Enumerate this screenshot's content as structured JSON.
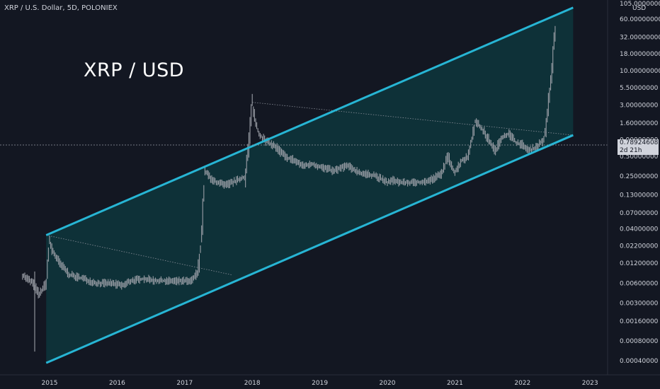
{
  "header": {
    "symbol_line": "XRP / U.S. Dollar, 5D, POLONIEX"
  },
  "overlay_title": "XRP / USD",
  "price_tag": {
    "price": "0.78924608",
    "countdown": "2d 21h"
  },
  "colors": {
    "background": "#131722",
    "channel": "#27b5d4",
    "channel_fill": "#0d3b40",
    "candles": "#9a9ea6",
    "text": "#d1d4dc"
  },
  "chart_data": {
    "type": "line",
    "title": "XRP / USD",
    "yscale": "log",
    "ylim": [
      0.0003,
      105
    ],
    "y_axis_unit": "USD",
    "y_ticks": [
      "105.00000000",
      "60.00000000",
      "32.00000000",
      "18.00000000",
      "10.00000000",
      "5.50000000",
      "3.00000000",
      "1.60000000",
      "0.90000000",
      "0.50000000",
      "0.25000000",
      "0.13000000",
      "0.07000000",
      "0.04000000",
      "0.02200000",
      "0.01200000",
      "0.00600000",
      "0.00300000",
      "0.00160000",
      "0.00080000",
      "0.00040000"
    ],
    "x_ticks": [
      "2015",
      "2016",
      "2017",
      "2018",
      "2019",
      "2020",
      "2021",
      "2022",
      "2023"
    ],
    "last_price": 0.78924608,
    "series": [
      {
        "x": [
          2014.6,
          2014.75,
          2014.85,
          2014.95,
          2015.0,
          2015.05,
          2015.15,
          2015.3,
          2015.5,
          2015.7,
          2015.9,
          2016.1,
          2016.2,
          2016.4,
          2016.6,
          2016.8,
          2017.0,
          2017.1,
          2017.2,
          2017.25,
          2017.3,
          2017.4,
          2017.5,
          2017.6,
          2017.7,
          2017.8,
          2017.9,
          2017.95,
          2018.0,
          2018.05,
          2018.1,
          2018.2,
          2018.35,
          2018.5,
          2018.6,
          2018.75,
          2018.9,
          2019.0,
          2019.2,
          2019.4,
          2019.5,
          2019.6,
          2019.8,
          2020.0,
          2020.1,
          2020.2,
          2020.4,
          2020.6,
          2020.8,
          2020.9,
          2021.0,
          2021.1,
          2021.2,
          2021.3,
          2021.4,
          2021.5,
          2021.6,
          2021.7,
          2021.8,
          2021.9,
          2022.0,
          2022.1,
          2022.2,
          2022.3,
          2022.35,
          2022.4,
          2022.45,
          2022.5
        ],
        "values": [
          0.008,
          0.006,
          0.004,
          0.006,
          0.025,
          0.018,
          0.012,
          0.008,
          0.007,
          0.006,
          0.006,
          0.0055,
          0.0065,
          0.007,
          0.0065,
          0.0065,
          0.0065,
          0.0063,
          0.009,
          0.03,
          0.3,
          0.22,
          0.2,
          0.18,
          0.2,
          0.22,
          0.25,
          0.8,
          3.3,
          1.6,
          1.1,
          0.85,
          0.7,
          0.48,
          0.45,
          0.36,
          0.38,
          0.35,
          0.3,
          0.36,
          0.32,
          0.28,
          0.26,
          0.2,
          0.22,
          0.2,
          0.2,
          0.21,
          0.27,
          0.5,
          0.28,
          0.43,
          0.5,
          1.7,
          1.3,
          0.9,
          0.6,
          1.0,
          1.1,
          0.82,
          0.75,
          0.6,
          0.7,
          0.85,
          1.2,
          4.5,
          15,
          60
        ]
      }
    ],
    "channel": {
      "upper": {
        "from": [
          2014.95,
          0.032
        ],
        "to": [
          2022.75,
          90
        ]
      },
      "lower": {
        "from": [
          2014.95,
          0.00037
        ],
        "to": [
          2022.75,
          1.05
        ]
      }
    },
    "annotations": [
      {
        "type": "dotted-trendline",
        "from": [
          2014.95,
          0.032
        ],
        "to": [
          2017.7,
          0.008
        ]
      },
      {
        "type": "dotted-trendline",
        "from": [
          2018.0,
          3.3
        ],
        "to": [
          2022.75,
          1.05
        ]
      }
    ]
  }
}
